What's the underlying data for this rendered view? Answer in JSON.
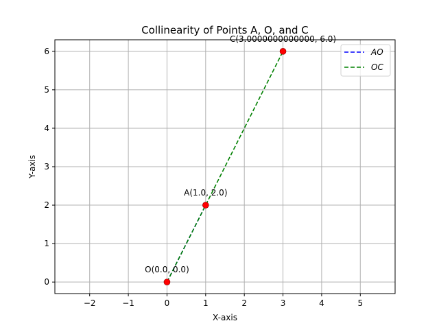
{
  "chart_data": {
    "type": "scatter",
    "title": "Collinearity of Points A, O, and C",
    "xlabel": "X-axis",
    "ylabel": "Y-axis",
    "xlim": [
      -2.9,
      5.9
    ],
    "ylim": [
      -0.3,
      6.3
    ],
    "xticks": [
      -2,
      -1,
      0,
      1,
      2,
      3,
      4,
      5
    ],
    "yticks": [
      0,
      1,
      2,
      3,
      4,
      5,
      6
    ],
    "grid": true,
    "legend_position": "top-right",
    "points": [
      {
        "name": "O",
        "x": 0.0,
        "y": 0.0,
        "label": "O(0.0, 0.0)",
        "color": "#ff0000"
      },
      {
        "name": "A",
        "x": 1.0,
        "y": 2.0,
        "label": "A(1.0, 2.0)",
        "color": "#ff0000"
      },
      {
        "name": "C",
        "x": 3.0,
        "y": 6.0,
        "label": "C(3.0000000000000, 6.0)",
        "color": "#ff0000"
      }
    ],
    "series": [
      {
        "name": "AO",
        "from": [
          0,
          0
        ],
        "to": [
          1,
          2
        ],
        "color": "#0000ff",
        "style": "dashed"
      },
      {
        "name": "OC",
        "from": [
          0,
          0
        ],
        "to": [
          3,
          6
        ],
        "color": "#008000",
        "style": "dashed"
      }
    ]
  }
}
